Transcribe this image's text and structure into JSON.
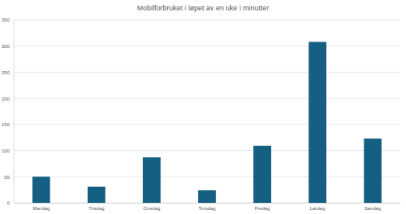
{
  "chart_data": {
    "type": "bar",
    "title": "Mobilforbruket i løpet av en uke i minutter",
    "categories": [
      "Mandag",
      "Tirsdag",
      "Onsdag",
      "Torsdag",
      "Fredag",
      "Lørdag",
      "Søndag"
    ],
    "values": [
      50,
      31,
      87,
      24,
      109,
      308,
      123
    ],
    "color": "#156082",
    "ylim": [
      0,
      350
    ],
    "yticks": [
      0,
      50,
      100,
      150,
      200,
      250,
      300,
      350
    ],
    "grid": true
  }
}
